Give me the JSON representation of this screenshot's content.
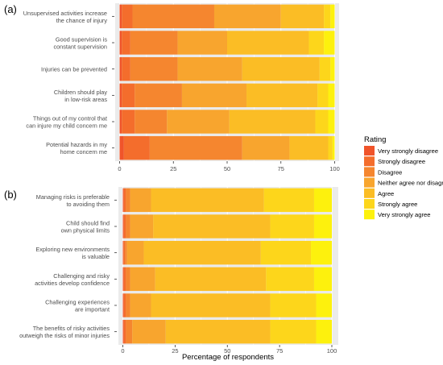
{
  "chart_data": [
    {
      "type": "bar",
      "stacked": "horizontal",
      "panel_label": "(a)",
      "xlim": [
        0,
        100
      ],
      "x_ticks": [
        0,
        25,
        50,
        75,
        100
      ],
      "xlabel": "",
      "grid": true,
      "categories": [
        [
          "Unsupervised activities increase",
          "the chance of injury"
        ],
        [
          "Good supervision is",
          "constant supervision"
        ],
        [
          "Injuries can be prevented"
        ],
        [
          "Children should play",
          "in low-risk areas"
        ],
        [
          "Things out of my control that",
          "can injure my child concern me"
        ],
        [
          "Potential hazards in my",
          "home concern me"
        ]
      ],
      "series": [
        {
          "name": "Very strongly disagree",
          "values": [
            1,
            1,
            1,
            1,
            1,
            2
          ]
        },
        {
          "name": "Strongly disagree",
          "values": [
            5,
            4,
            4,
            6,
            6,
            12
          ]
        },
        {
          "name": "Disagree",
          "values": [
            38,
            22,
            22,
            22,
            15,
            43
          ]
        },
        {
          "name": "Neither agree nor disagree",
          "values": [
            31,
            23,
            30,
            30,
            29,
            22
          ]
        },
        {
          "name": "Agree",
          "values": [
            20,
            38,
            36,
            33,
            40,
            18
          ]
        },
        {
          "name": "Strongly agree",
          "values": [
            3,
            7,
            5,
            5,
            6,
            2
          ]
        },
        {
          "name": "Very strongly agree",
          "values": [
            2,
            5,
            2,
            3,
            3,
            1
          ]
        }
      ]
    },
    {
      "type": "bar",
      "stacked": "horizontal",
      "panel_label": "(b)",
      "xlim": [
        0,
        100
      ],
      "x_ticks": [
        0,
        25,
        50,
        75,
        100
      ],
      "xlabel": "Percentage of respondents",
      "grid": true,
      "categories": [
        [
          "Managing risks is preferable",
          "to avoiding them"
        ],
        [
          "Child should find",
          "own physical limits"
        ],
        [
          "Exploring new environments",
          "is valuable"
        ],
        [
          "Challenging and risky",
          "activities develop confidence"
        ],
        [
          "Challenging experiences",
          "are important"
        ],
        [
          "The benefits of risky activities",
          "outweigh the risks of minor injuries"
        ]
      ],
      "series": [
        {
          "name": "Very strongly disagree",
          "values": [
            0.5,
            0.5,
            0.3,
            0.5,
            0.5,
            0.5
          ]
        },
        {
          "name": "Strongly disagree",
          "values": [
            1,
            1,
            0.7,
            1,
            1,
            1
          ]
        },
        {
          "name": "Disagree",
          "values": [
            2,
            2,
            1,
            2,
            2,
            3
          ]
        },
        {
          "name": "Neither agree nor disagree",
          "values": [
            10,
            11,
            8,
            12,
            10,
            16
          ]
        },
        {
          "name": "Agree",
          "values": [
            54,
            56,
            56,
            53,
            57,
            50
          ]
        },
        {
          "name": "Strongly agree",
          "values": [
            24,
            21,
            24,
            23,
            22,
            22
          ]
        },
        {
          "name": "Very strongly agree",
          "values": [
            8.5,
            8.5,
            10,
            8.5,
            7.5,
            7.5
          ]
        }
      ]
    }
  ],
  "legend": {
    "title": "Rating",
    "placement": "right",
    "items": [
      {
        "label": "Very strongly disagree",
        "color": "#f0542a"
      },
      {
        "label": "Strongly disagree",
        "color": "#f46d2c"
      },
      {
        "label": "Disagree",
        "color": "#f5862f"
      },
      {
        "label": "Neither agree nor disagree",
        "color": "#f8a52e"
      },
      {
        "label": "Agree",
        "color": "#fbbd25"
      },
      {
        "label": "Strongly agree",
        "color": "#fdd61b"
      },
      {
        "label": "Very strongly agree",
        "color": "#fdf10d"
      }
    ]
  },
  "colors": {
    "panel_bg": "#ebebeb",
    "gridline": "#ffffff",
    "axis_text": "#4d4d4d"
  }
}
